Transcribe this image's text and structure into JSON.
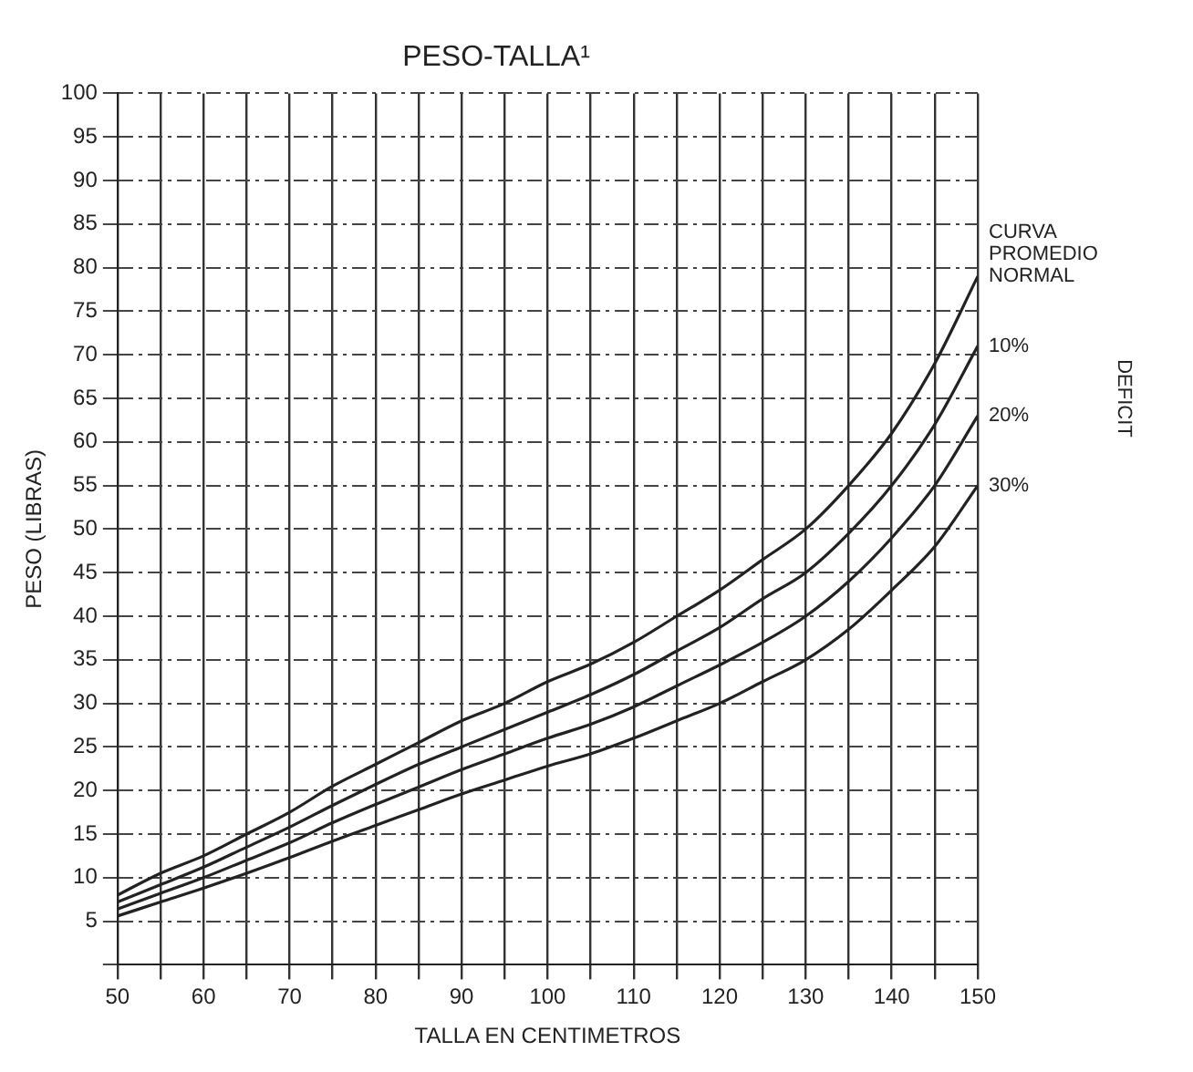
{
  "chart_data": {
    "type": "line",
    "title": "PESO-TALLA¹",
    "xlabel": "TALLA EN CENTIMETROS",
    "ylabel": "PESO (LIBRAS)",
    "x": [
      50,
      55,
      60,
      65,
      70,
      75,
      80,
      85,
      90,
      95,
      100,
      105,
      110,
      115,
      120,
      125,
      130,
      135,
      140,
      145,
      150
    ],
    "series": [
      {
        "name": "CURVA PROMEDIO NORMAL",
        "color": "#222222",
        "values": [
          8,
          10.5,
          12.5,
          15,
          17.5,
          20.5,
          23,
          25.5,
          28,
          30,
          32.5,
          34.5,
          37,
          40,
          43,
          46.5,
          50,
          55,
          61,
          69,
          79
        ]
      },
      {
        "name": "10%",
        "color": "#222222",
        "values": [
          7.2,
          9.2,
          11.2,
          13.5,
          15.8,
          18.3,
          20.7,
          23,
          25,
          27,
          29,
          31,
          33.3,
          36,
          38.7,
          42,
          45,
          49.5,
          55,
          62,
          71
        ]
      },
      {
        "name": "20%",
        "color": "#222222",
        "values": [
          6.4,
          8.2,
          10,
          12,
          14,
          16.3,
          18.4,
          20.4,
          22.4,
          24.2,
          26,
          27.6,
          29.6,
          32,
          34.4,
          37,
          40,
          44,
          49,
          55,
          63
        ]
      },
      {
        "name": "30%",
        "color": "#222222",
        "values": [
          5.6,
          7.2,
          8.8,
          10.5,
          12.3,
          14.2,
          16,
          17.8,
          19.6,
          21.2,
          22.8,
          24.2,
          26,
          28,
          30,
          32.5,
          35,
          38.5,
          43,
          48,
          55
        ]
      }
    ],
    "annotations": [
      "DEFICIT"
    ],
    "xlim": [
      50,
      150
    ],
    "xticks": [
      50,
      {
        "value": 55,
        "label": null
      },
      60,
      {
        "value": 65,
        "label": null
      },
      70,
      {
        "value": 75,
        "label": null
      },
      80,
      {
        "value": 85,
        "label": null
      },
      90,
      {
        "value": 95,
        "label": null
      },
      100,
      {
        "value": 105,
        "label": null
      },
      110,
      {
        "value": 115,
        "label": null
      },
      120,
      {
        "value": 125,
        "label": null
      },
      130,
      {
        "value": 135,
        "label": null
      },
      140,
      {
        "value": 145,
        "label": null
      },
      150
    ],
    "ylim": [
      0,
      100
    ],
    "yticks": [
      {
        "value": 0,
        "label": null
      },
      5,
      10,
      15,
      20,
      25,
      30,
      35,
      40,
      45,
      50,
      55,
      60,
      65,
      70,
      75,
      80,
      85,
      90,
      95,
      100
    ],
    "grid": true,
    "legend": false,
    "marker": "none",
    "line_style": "solid"
  }
}
